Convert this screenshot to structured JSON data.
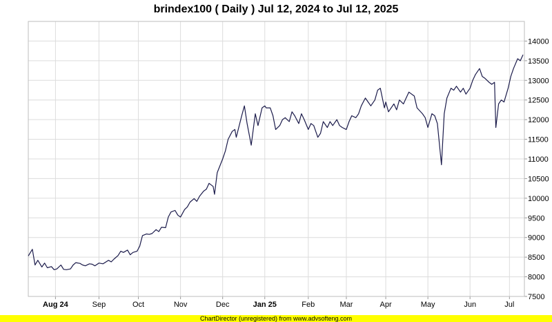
{
  "chart_data": {
    "type": "line",
    "title": "brindex100 ( Daily ) Jul 12, 2024 to Jul 12, 2025",
    "xlabel": "",
    "ylabel": "",
    "ylim": [
      7500,
      14500
    ],
    "y_ticks": [
      7500,
      8000,
      8500,
      9000,
      9500,
      10000,
      10500,
      11000,
      11500,
      12000,
      12500,
      13000,
      13500,
      14000
    ],
    "x_ticks": [
      {
        "label": "Aug 24",
        "date": "2024-08-01",
        "bold": true
      },
      {
        "label": "Sep",
        "date": "2024-09-02",
        "bold": false
      },
      {
        "label": "Oct",
        "date": "2024-10-01",
        "bold": false
      },
      {
        "label": "Nov",
        "date": "2024-11-01",
        "bold": false
      },
      {
        "label": "Dec",
        "date": "2024-12-02",
        "bold": false
      },
      {
        "label": "Jan 25",
        "date": "2025-01-02",
        "bold": true
      },
      {
        "label": "Feb",
        "date": "2025-02-03",
        "bold": false
      },
      {
        "label": "Mar",
        "date": "2025-03-03",
        "bold": false
      },
      {
        "label": "Apr",
        "date": "2025-04-01",
        "bold": false
      },
      {
        "label": "May",
        "date": "2025-05-02",
        "bold": false
      },
      {
        "label": "Jun",
        "date": "2025-06-02",
        "bold": false
      },
      {
        "label": "Jul",
        "date": "2025-07-01",
        "bold": false
      }
    ],
    "x_range": [
      "2024-07-12",
      "2025-07-12"
    ],
    "grid": true,
    "line_color": "#1a1a4a",
    "series": [
      {
        "name": "",
        "points": [
          [
            "2024-07-12",
            8530
          ],
          [
            "2024-07-15",
            8700
          ],
          [
            "2024-07-17",
            8300
          ],
          [
            "2024-07-19",
            8420
          ],
          [
            "2024-07-22",
            8250
          ],
          [
            "2024-07-24",
            8350
          ],
          [
            "2024-07-26",
            8230
          ],
          [
            "2024-07-29",
            8260
          ],
          [
            "2024-07-31",
            8180
          ],
          [
            "2024-08-02",
            8200
          ],
          [
            "2024-08-05",
            8300
          ],
          [
            "2024-08-07",
            8190
          ],
          [
            "2024-08-09",
            8180
          ],
          [
            "2024-08-12",
            8200
          ],
          [
            "2024-08-14",
            8300
          ],
          [
            "2024-08-16",
            8360
          ],
          [
            "2024-08-19",
            8340
          ],
          [
            "2024-08-21",
            8300
          ],
          [
            "2024-08-23",
            8280
          ],
          [
            "2024-08-26",
            8330
          ],
          [
            "2024-08-28",
            8320
          ],
          [
            "2024-08-30",
            8280
          ],
          [
            "2024-09-02",
            8350
          ],
          [
            "2024-09-05",
            8330
          ],
          [
            "2024-09-09",
            8420
          ],
          [
            "2024-09-11",
            8380
          ],
          [
            "2024-09-13",
            8450
          ],
          [
            "2024-09-16",
            8540
          ],
          [
            "2024-09-18",
            8650
          ],
          [
            "2024-09-20",
            8620
          ],
          [
            "2024-09-23",
            8680
          ],
          [
            "2024-09-25",
            8560
          ],
          [
            "2024-09-27",
            8620
          ],
          [
            "2024-09-30",
            8650
          ],
          [
            "2024-10-02",
            8780
          ],
          [
            "2024-10-04",
            9050
          ],
          [
            "2024-10-07",
            9090
          ],
          [
            "2024-10-09",
            9080
          ],
          [
            "2024-10-11",
            9100
          ],
          [
            "2024-10-14",
            9200
          ],
          [
            "2024-10-16",
            9150
          ],
          [
            "2024-10-18",
            9260
          ],
          [
            "2024-10-21",
            9250
          ],
          [
            "2024-10-23",
            9520
          ],
          [
            "2024-10-25",
            9650
          ],
          [
            "2024-10-28",
            9690
          ],
          [
            "2024-10-30",
            9570
          ],
          [
            "2024-11-01",
            9520
          ],
          [
            "2024-11-04",
            9710
          ],
          [
            "2024-11-06",
            9780
          ],
          [
            "2024-11-08",
            9900
          ],
          [
            "2024-11-11",
            9990
          ],
          [
            "2024-11-13",
            9920
          ],
          [
            "2024-11-15",
            10050
          ],
          [
            "2024-11-18",
            10180
          ],
          [
            "2024-11-20",
            10230
          ],
          [
            "2024-11-22",
            10380
          ],
          [
            "2024-11-25",
            10300
          ],
          [
            "2024-11-26",
            10100
          ],
          [
            "2024-11-28",
            10650
          ],
          [
            "2024-12-02",
            11000
          ],
          [
            "2024-12-04",
            11200
          ],
          [
            "2024-12-06",
            11500
          ],
          [
            "2024-12-09",
            11700
          ],
          [
            "2024-12-11",
            11750
          ],
          [
            "2024-12-12",
            11550
          ],
          [
            "2024-12-16",
            12100
          ],
          [
            "2024-12-18",
            12350
          ],
          [
            "2024-12-20",
            11900
          ],
          [
            "2024-12-23",
            11350
          ],
          [
            "2024-12-26",
            12150
          ],
          [
            "2024-12-28",
            11850
          ],
          [
            "2024-12-31",
            12300
          ],
          [
            "2025-01-02",
            12350
          ],
          [
            "2025-01-03",
            12300
          ],
          [
            "2025-01-06",
            12300
          ],
          [
            "2025-01-08",
            12100
          ],
          [
            "2025-01-10",
            11750
          ],
          [
            "2025-01-13",
            11850
          ],
          [
            "2025-01-15",
            12000
          ],
          [
            "2025-01-17",
            12050
          ],
          [
            "2025-01-20",
            11950
          ],
          [
            "2025-01-22",
            12200
          ],
          [
            "2025-01-24",
            12100
          ],
          [
            "2025-01-27",
            11900
          ],
          [
            "2025-01-29",
            12150
          ],
          [
            "2025-01-31",
            12000
          ],
          [
            "2025-02-03",
            11750
          ],
          [
            "2025-02-05",
            11900
          ],
          [
            "2025-02-07",
            11850
          ],
          [
            "2025-02-10",
            11550
          ],
          [
            "2025-02-12",
            11650
          ],
          [
            "2025-02-14",
            11950
          ],
          [
            "2025-02-17",
            11800
          ],
          [
            "2025-02-19",
            11950
          ],
          [
            "2025-02-21",
            11850
          ],
          [
            "2025-02-24",
            12000
          ],
          [
            "2025-02-26",
            11850
          ],
          [
            "2025-02-28",
            11800
          ],
          [
            "2025-03-03",
            11750
          ],
          [
            "2025-03-05",
            11950
          ],
          [
            "2025-03-07",
            12100
          ],
          [
            "2025-03-10",
            12050
          ],
          [
            "2025-03-12",
            12150
          ],
          [
            "2025-03-14",
            12350
          ],
          [
            "2025-03-17",
            12550
          ],
          [
            "2025-03-19",
            12450
          ],
          [
            "2025-03-21",
            12350
          ],
          [
            "2025-03-24",
            12500
          ],
          [
            "2025-03-26",
            12750
          ],
          [
            "2025-03-28",
            12800
          ],
          [
            "2025-03-31",
            12300
          ],
          [
            "2025-04-01",
            12450
          ],
          [
            "2025-04-03",
            12200
          ],
          [
            "2025-04-07",
            12400
          ],
          [
            "2025-04-09",
            12250
          ],
          [
            "2025-04-11",
            12500
          ],
          [
            "2025-04-14",
            12400
          ],
          [
            "2025-04-16",
            12550
          ],
          [
            "2025-04-18",
            12700
          ],
          [
            "2025-04-22",
            12600
          ],
          [
            "2025-04-24",
            12300
          ],
          [
            "2025-04-28",
            12150
          ],
          [
            "2025-04-30",
            12050
          ],
          [
            "2025-05-02",
            11800
          ],
          [
            "2025-05-05",
            12150
          ],
          [
            "2025-05-07",
            12100
          ],
          [
            "2025-05-09",
            11900
          ],
          [
            "2025-05-12",
            10850
          ],
          [
            "2025-05-14",
            12150
          ],
          [
            "2025-05-16",
            12550
          ],
          [
            "2025-05-19",
            12800
          ],
          [
            "2025-05-21",
            12750
          ],
          [
            "2025-05-23",
            12850
          ],
          [
            "2025-05-26",
            12700
          ],
          [
            "2025-05-28",
            12800
          ],
          [
            "2025-05-30",
            12650
          ],
          [
            "2025-06-02",
            12800
          ],
          [
            "2025-06-04",
            13000
          ],
          [
            "2025-06-06",
            13150
          ],
          [
            "2025-06-09",
            13300
          ],
          [
            "2025-06-11",
            13100
          ],
          [
            "2025-06-13",
            13050
          ],
          [
            "2025-06-16",
            12950
          ],
          [
            "2025-06-18",
            12900
          ],
          [
            "2025-06-20",
            12950
          ],
          [
            "2025-06-21",
            11800
          ],
          [
            "2025-06-23",
            12400
          ],
          [
            "2025-06-25",
            12500
          ],
          [
            "2025-06-27",
            12450
          ],
          [
            "2025-06-30",
            12800
          ],
          [
            "2025-07-02",
            13100
          ],
          [
            "2025-07-04",
            13300
          ],
          [
            "2025-07-07",
            13550
          ],
          [
            "2025-07-09",
            13500
          ],
          [
            "2025-07-11",
            13650
          ]
        ]
      }
    ]
  },
  "footer": {
    "text": "ChartDirector (unregistered) from www.advsofteng.com",
    "background": "#ffff00"
  }
}
